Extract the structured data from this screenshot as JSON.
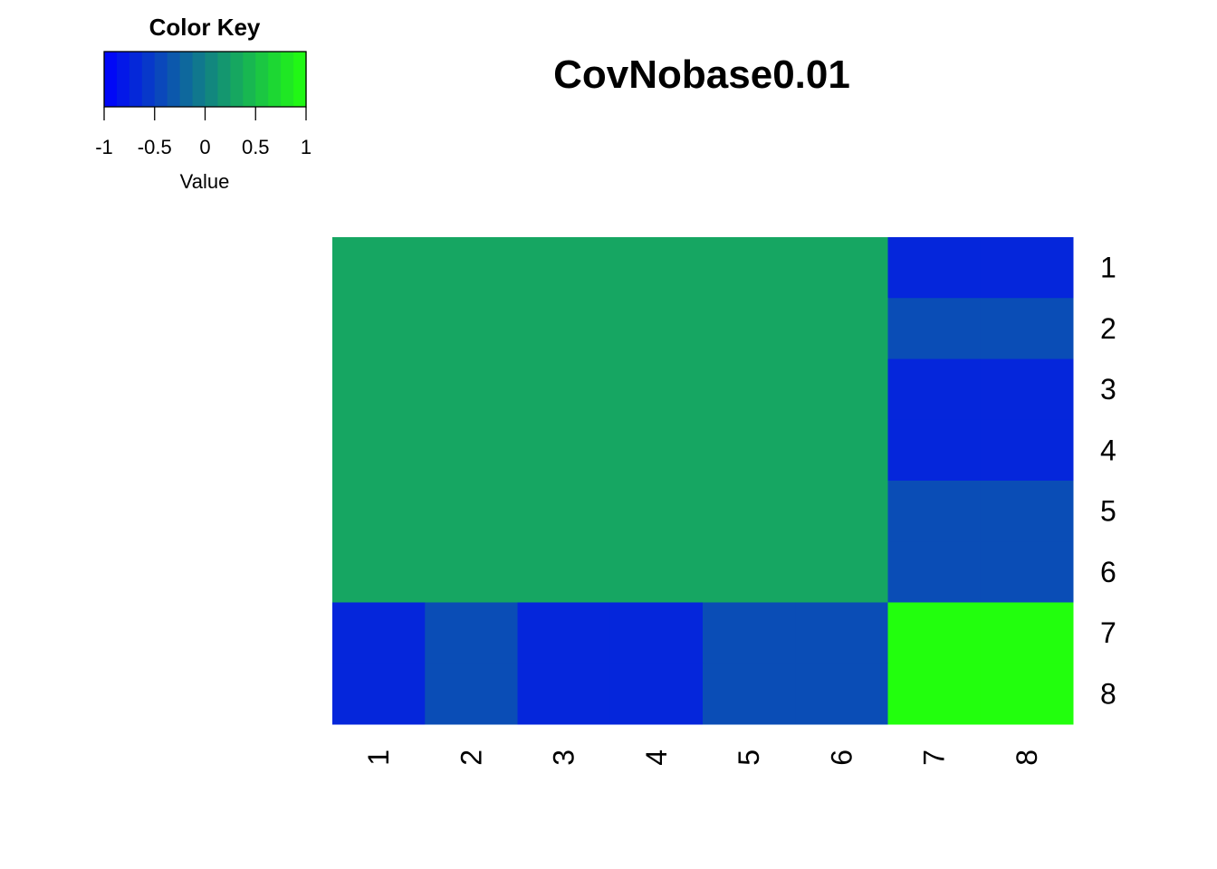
{
  "chart_data": {
    "type": "heatmap",
    "title": "CovNobase0.01",
    "row_labels": [
      "1",
      "2",
      "3",
      "4",
      "5",
      "6",
      "7",
      "8"
    ],
    "col_labels": [
      "1",
      "2",
      "3",
      "4",
      "5",
      "6",
      "7",
      "8"
    ],
    "values": [
      [
        0.3,
        0.3,
        0.3,
        0.3,
        0.3,
        0.3,
        -0.7,
        -0.7
      ],
      [
        0.3,
        0.3,
        0.3,
        0.3,
        0.3,
        0.3,
        -0.4,
        -0.4
      ],
      [
        0.3,
        0.3,
        0.3,
        0.3,
        0.3,
        0.3,
        -0.7,
        -0.7
      ],
      [
        0.3,
        0.3,
        0.3,
        0.3,
        0.3,
        0.3,
        -0.7,
        -0.7
      ],
      [
        0.3,
        0.3,
        0.3,
        0.3,
        0.3,
        0.3,
        -0.4,
        -0.4
      ],
      [
        0.3,
        0.3,
        0.3,
        0.3,
        0.3,
        0.3,
        -0.4,
        -0.4
      ],
      [
        -0.7,
        -0.4,
        -0.7,
        -0.7,
        -0.4,
        -0.4,
        1.0,
        1.0
      ],
      [
        -0.7,
        -0.4,
        -0.7,
        -0.7,
        -0.4,
        -0.4,
        1.0,
        1.0
      ]
    ],
    "color_key": {
      "title": "Color Key",
      "label": "Value",
      "range": [
        -1,
        1
      ],
      "ticks": [
        -1,
        -0.5,
        0,
        0.5,
        1
      ],
      "tick_labels": [
        "-1",
        "-0.5",
        "0",
        "0.5",
        "1"
      ],
      "low_color": "#0000ff",
      "high_color": "#22ff0d",
      "bins": 16
    }
  }
}
